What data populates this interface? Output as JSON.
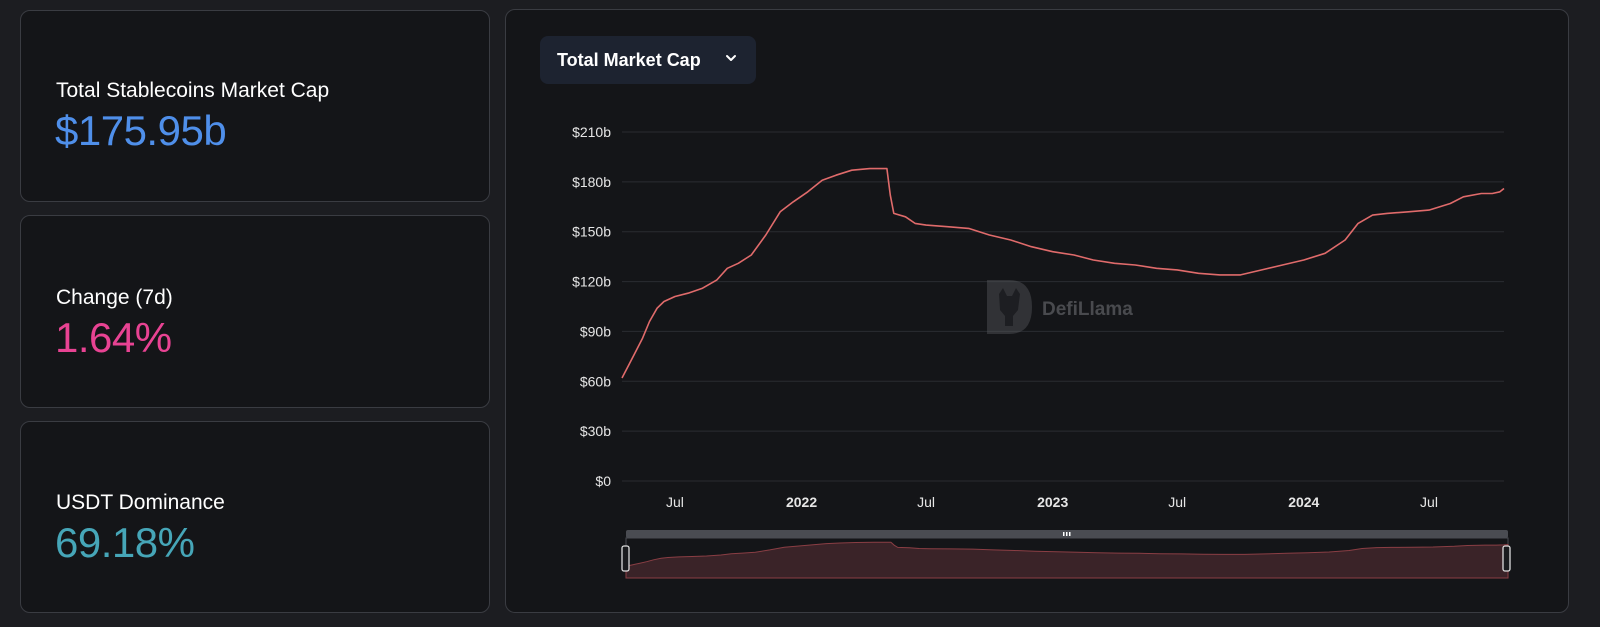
{
  "stats": [
    {
      "label": "Total Stablecoins Market Cap",
      "value": "$175.95b",
      "color": "#4f8fea"
    },
    {
      "label": "Change (7d)",
      "value": "1.64%",
      "color": "#e84393"
    },
    {
      "label": "USDT Dominance",
      "value": "69.18%",
      "color": "#46a6b8"
    }
  ],
  "chart_panel": {
    "metric_select_label": "Total Market Cap",
    "watermark_text": "DefiLlama"
  },
  "colors": {
    "line": "#e06b6b",
    "brush_fill": "#3a2328",
    "grid": "#2a2c31",
    "tick_text": "#e6e6e6"
  },
  "chart_data": {
    "type": "line",
    "title": "",
    "xlabel": "",
    "ylabel": "",
    "ylim": [
      0,
      210
    ],
    "y_ticks": [
      0,
      30,
      60,
      90,
      120,
      150,
      180,
      210
    ],
    "y_tick_labels": [
      "$0",
      "$30b",
      "$60b",
      "$90b",
      "$120b",
      "$150b",
      "$180b",
      "$210b"
    ],
    "xlim": [
      "2021-04-15",
      "2024-10-18"
    ],
    "x_ticks": [
      {
        "date": "2021-07-01",
        "label": "Jul",
        "bold": false
      },
      {
        "date": "2022-01-01",
        "label": "2022",
        "bold": true
      },
      {
        "date": "2022-07-01",
        "label": "Jul",
        "bold": false
      },
      {
        "date": "2023-01-01",
        "label": "2023",
        "bold": true
      },
      {
        "date": "2023-07-01",
        "label": "Jul",
        "bold": false
      },
      {
        "date": "2024-01-01",
        "label": "2024",
        "bold": true
      },
      {
        "date": "2024-07-01",
        "label": "Jul",
        "bold": false
      }
    ],
    "series": [
      {
        "values_unit": "USD billions",
        "points": [
          [
            "2021-04-15",
            62
          ],
          [
            "2021-04-25",
            70
          ],
          [
            "2021-05-05",
            78
          ],
          [
            "2021-05-15",
            86
          ],
          [
            "2021-05-25",
            96
          ],
          [
            "2021-06-05",
            104
          ],
          [
            "2021-06-15",
            108
          ],
          [
            "2021-07-01",
            111
          ],
          [
            "2021-07-20",
            113
          ],
          [
            "2021-08-10",
            116
          ],
          [
            "2021-08-31",
            121
          ],
          [
            "2021-09-15",
            128
          ],
          [
            "2021-10-01",
            131
          ],
          [
            "2021-10-20",
            136
          ],
          [
            "2021-11-10",
            148
          ],
          [
            "2021-12-01",
            162
          ],
          [
            "2021-12-20",
            168
          ],
          [
            "2022-01-10",
            174
          ],
          [
            "2022-01-31",
            181
          ],
          [
            "2022-02-20",
            184
          ],
          [
            "2022-03-15",
            187
          ],
          [
            "2022-04-10",
            188
          ],
          [
            "2022-05-05",
            188
          ],
          [
            "2022-05-10",
            172
          ],
          [
            "2022-05-15",
            161
          ],
          [
            "2022-06-01",
            159
          ],
          [
            "2022-06-15",
            155
          ],
          [
            "2022-07-01",
            154
          ],
          [
            "2022-08-01",
            153
          ],
          [
            "2022-09-01",
            152
          ],
          [
            "2022-10-01",
            148
          ],
          [
            "2022-11-01",
            145
          ],
          [
            "2022-12-01",
            141
          ],
          [
            "2023-01-01",
            138
          ],
          [
            "2023-02-01",
            136
          ],
          [
            "2023-03-01",
            133
          ],
          [
            "2023-04-01",
            131
          ],
          [
            "2023-05-01",
            130
          ],
          [
            "2023-06-01",
            128
          ],
          [
            "2023-07-01",
            127
          ],
          [
            "2023-08-01",
            125
          ],
          [
            "2023-09-01",
            124
          ],
          [
            "2023-10-01",
            124
          ],
          [
            "2023-11-01",
            127
          ],
          [
            "2023-12-01",
            130
          ],
          [
            "2024-01-01",
            133
          ],
          [
            "2024-02-01",
            137
          ],
          [
            "2024-03-01",
            145
          ],
          [
            "2024-03-20",
            155
          ],
          [
            "2024-04-10",
            160
          ],
          [
            "2024-05-01",
            161
          ],
          [
            "2024-06-01",
            162
          ],
          [
            "2024-07-01",
            163
          ],
          [
            "2024-08-01",
            167
          ],
          [
            "2024-08-20",
            171
          ],
          [
            "2024-09-15",
            173
          ],
          [
            "2024-10-01",
            173
          ],
          [
            "2024-10-12",
            174
          ],
          [
            "2024-10-18",
            176
          ]
        ]
      }
    ],
    "grid": true,
    "legend": "none",
    "brush_range": [
      0,
      1
    ]
  }
}
